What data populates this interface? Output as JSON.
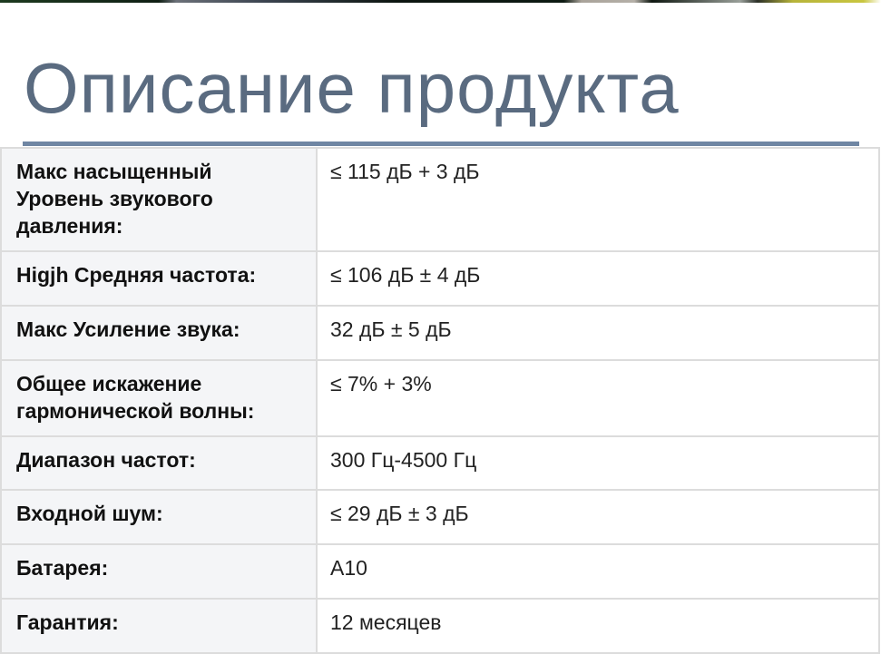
{
  "title": "Описание продукта",
  "specs": [
    {
      "label": "Макс насыщенный Уровень звукового давления:",
      "value": "≤ 115 дБ + 3 дБ"
    },
    {
      "label": "Higjh Средняя частота:",
      "value": "≤ 106 дБ ± 4 дБ"
    },
    {
      "label": "Макс Усиление звука:",
      "value": "32 дБ ± 5 дБ"
    },
    {
      "label": "Общее искажение гармонической волны:",
      "value": "≤ 7% + 3%"
    },
    {
      "label": "Диапазон частот:",
      "value": "300 Гц-4500 Гц"
    },
    {
      "label": "Входной шум:",
      "value": "≤ 29 дБ ± 3 дБ"
    },
    {
      "label": "Батарея:",
      "value": "A10"
    },
    {
      "label": "Гарантия:",
      "value": "12 месяцев"
    }
  ]
}
